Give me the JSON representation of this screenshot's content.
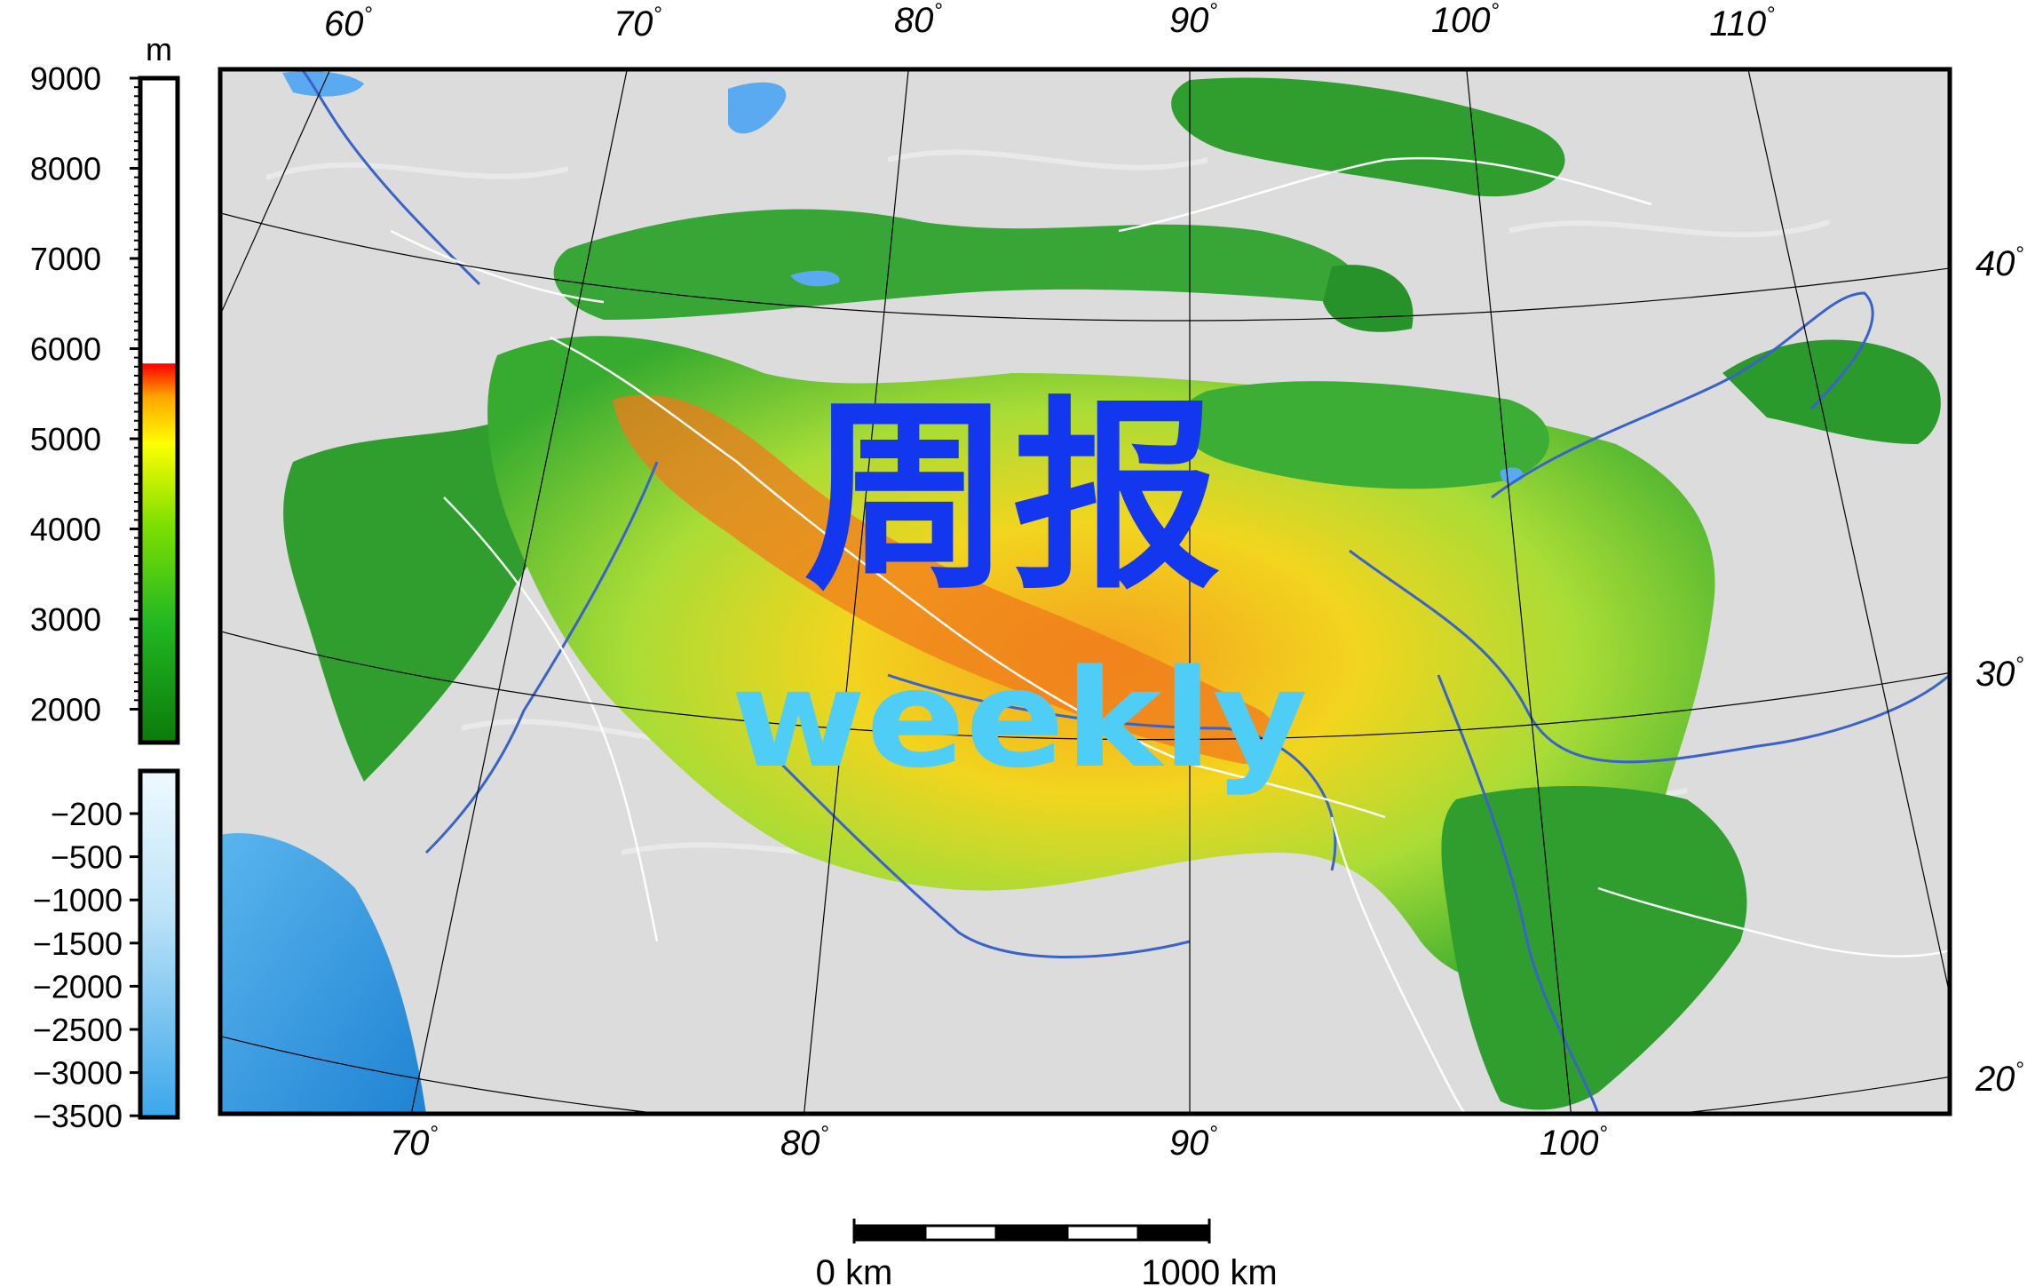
{
  "watermark": {
    "chinese": "周报",
    "english": "weekly"
  },
  "colorbar_land": {
    "unit": "m",
    "ticks": [
      "9000",
      "8000",
      "7000",
      "6000",
      "5000",
      "4000",
      "3000",
      "2000"
    ],
    "colors": [
      "#ffffff",
      "#ff0000",
      "#ffa500",
      "#ffff00",
      "#7fe000",
      "#22b822",
      "#0b7a0b"
    ]
  },
  "colorbar_sea": {
    "ticks": [
      "-200",
      "-500",
      "-1000",
      "-1500",
      "-2000",
      "-2500",
      "-3000",
      "-3500"
    ],
    "colors": [
      "#eef9ff",
      "#3aa7ea"
    ]
  },
  "longitude_top": [
    {
      "value": "60",
      "unit": "°"
    },
    {
      "value": "70",
      "unit": "°"
    },
    {
      "value": "80",
      "unit": "°"
    },
    {
      "value": "90",
      "unit": "°"
    },
    {
      "value": "100",
      "unit": "°"
    },
    {
      "value": "110",
      "unit": "°"
    }
  ],
  "longitude_bottom": [
    {
      "value": "70",
      "unit": "°"
    },
    {
      "value": "80",
      "unit": "°"
    },
    {
      "value": "90",
      "unit": "°"
    },
    {
      "value": "100",
      "unit": "°"
    }
  ],
  "latitude_right": [
    {
      "value": "40",
      "unit": "°"
    },
    {
      "value": "30",
      "unit": "°"
    },
    {
      "value": "20",
      "unit": "°"
    }
  ],
  "scale_bar": {
    "start_label": "0 km",
    "end_label": "1000 km"
  },
  "map_colors": {
    "plain": "#dcdcdc",
    "lowland": "#2f9e2f",
    "midland": "#8ed42e",
    "highland": "#f0d21c",
    "peak": "#f07a1c",
    "river": "#3a63c9",
    "border": "#ffffff",
    "sea": "#2f8fda"
  }
}
